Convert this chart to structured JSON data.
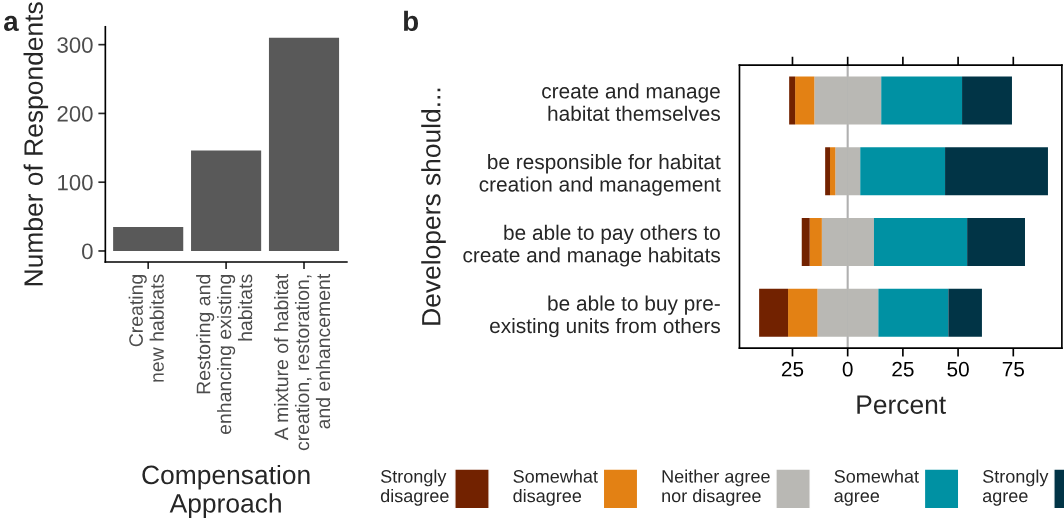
{
  "chart_data": [
    {
      "type": "bar",
      "title": "a",
      "xlabel": "Compensation\nApproach",
      "ylabel": "Number of Respondents",
      "categories": [
        "Creating\nnew habitats",
        "Restoring and\nenhancing existing\nhabitats",
        "A mixture of habitat\ncreation, restoration,\nand enhancement"
      ],
      "values": [
        35,
        146,
        310
      ],
      "color": "#595959",
      "ylim": [
        -16,
        326
      ],
      "yticks": [
        0,
        100,
        200,
        300
      ],
      "grid": false
    },
    {
      "type": "bar",
      "title": "b",
      "orientation": "horizontal",
      "stacked": true,
      "xlabel": "Percent",
      "ylabel": "Developers should...",
      "categories": [
        "create and manage\nhabitat themselves",
        "be responsible for habitat\ncreation and management",
        "be able to pay others to\ncreate and manage habitats",
        "be able to buy pre-\nexisting units from others"
      ],
      "series": [
        {
          "color": "#b9b8b4",
          "values": [
            -15.1,
            -5.6,
            -11.7,
            -13.7
          ]
        },
        {
          "name": "Somewhat\ndisagree",
          "color": "#e38114",
          "values": [
            -8.7,
            -2.4,
            -5.5,
            -13.3
          ]
        },
        {
          "name": "Strongly\ndisagree",
          "color": "#722200",
          "values": [
            -2.7,
            -2.2,
            -3.6,
            -13.1
          ]
        },
        {
          "name": "Neither agree\nnor disagree",
          "color": "#b9b8b4",
          "values": [
            15.2,
            5.7,
            11.9,
            13.9
          ]
        },
        {
          "name": "Somewhat\nagree",
          "color": "#0091a3",
          "values": [
            36.6,
            38.4,
            42.2,
            31.7
          ]
        },
        {
          "name": "Strongly\nagree",
          "color": "#013446",
          "values": [
            22.6,
            46.6,
            26.2,
            15.2
          ]
        }
      ],
      "xlim": [
        -49,
        97
      ],
      "xticks": [
        {
          "value": -25,
          "label": "25"
        },
        0,
        25,
        50,
        75
      ],
      "ref_lines": [
        {
          "axis": "x",
          "value": 0,
          "color": "#b0b0b0"
        }
      ],
      "legend": "bottom",
      "grid": false
    }
  ]
}
